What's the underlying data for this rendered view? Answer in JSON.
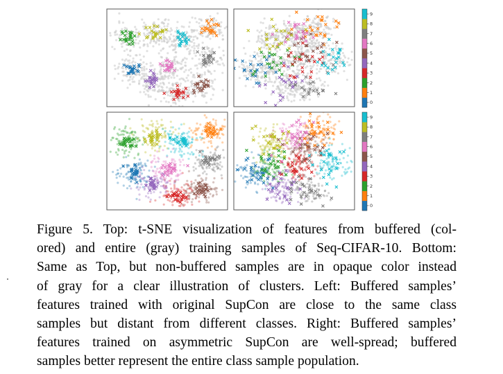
{
  "figure": {
    "panels": [
      {
        "id": "top-left",
        "row": "top",
        "col": "left"
      },
      {
        "id": "top-right",
        "row": "top",
        "col": "right"
      },
      {
        "id": "bottom-left",
        "row": "bottom",
        "col": "left"
      },
      {
        "id": "bottom-right",
        "row": "bottom",
        "col": "right"
      }
    ],
    "colorbar_ticks": [
      "0",
      "1",
      "2",
      "3",
      "4",
      "5",
      "6",
      "7",
      "8",
      "9"
    ],
    "class_colors": [
      "#1f77b4",
      "#ff7f0e",
      "#2ca02c",
      "#d62728",
      "#9467bd",
      "#8c564b",
      "#e377c2",
      "#7f7f7f",
      "#bcbd22",
      "#17becf"
    ],
    "background_color": "#c8c8c8"
  },
  "caption": {
    "lines": [
      "Figure 5. Top: t-SNE visualization of features from buffered (col-",
      "ored) and entire (gray) training samples of Seq-CIFAR-10. Bottom:",
      "Same as Top, but non-buffered samples are in opaque color instead",
      "of gray for a clear illustration of clusters. Left: Buffered samples’",
      "features trained with original SupCon are close to the same class",
      "samples but distant from different classes. Right: Buffered samples’",
      "features trained on asymmetric SupCon are well-spread; buffered",
      "samples better represent the entire class sample population."
    ]
  }
}
